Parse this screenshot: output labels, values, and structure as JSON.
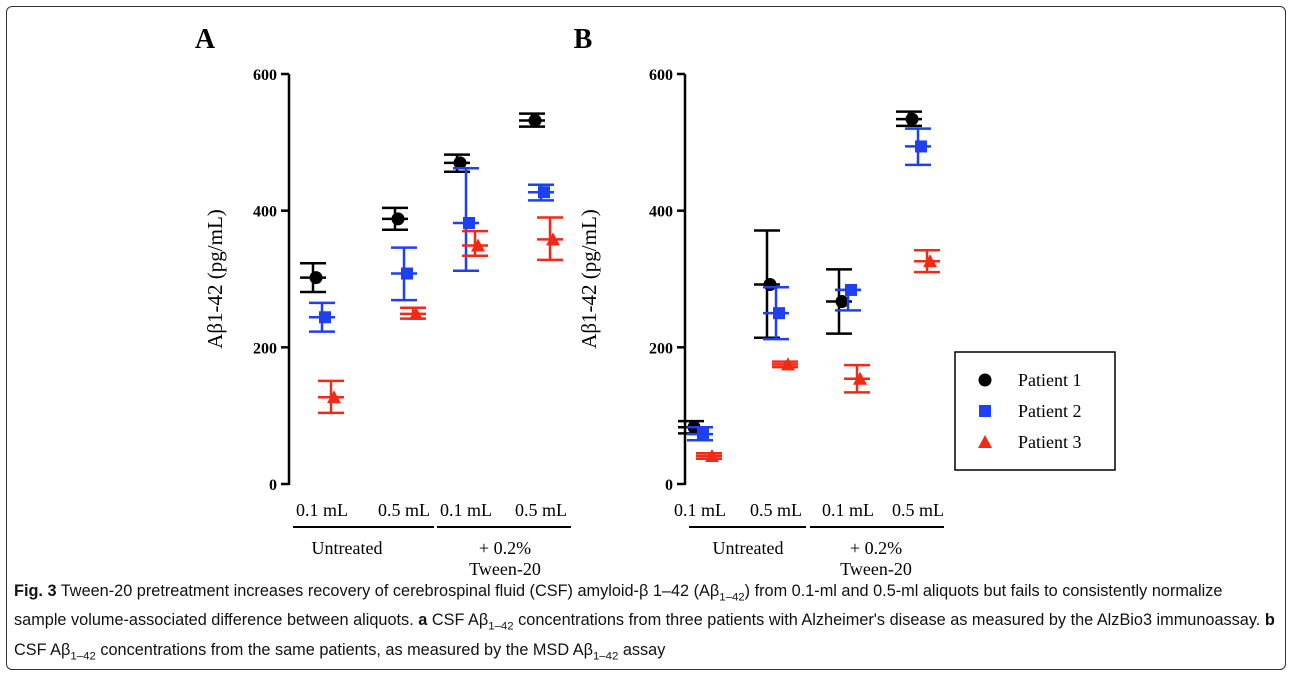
{
  "chart_data": [
    {
      "type": "scatter",
      "panel": "A",
      "ylabel": "Aβ1-42 (pg/mL)",
      "ylim": [
        0,
        600
      ],
      "yticks": [
        "0",
        "200",
        "400",
        "600"
      ],
      "categories": [
        "0.1 mL",
        "0.5 mL",
        "0.1 mL",
        "0.5 mL"
      ],
      "groups": [
        {
          "label": "Untreated",
          "label2": ""
        },
        {
          "label": "+ 0.2%",
          "label2": "Tween-20"
        }
      ],
      "series": [
        {
          "name": "Patient 1",
          "values": [
            302,
            388,
            470,
            532
          ],
          "err_low": [
            281,
            372,
            457,
            523
          ],
          "err_high": [
            323,
            404,
            482,
            542
          ]
        },
        {
          "name": "Patient 2",
          "values": [
            244,
            308,
            382,
            427
          ],
          "err_low": [
            223,
            269,
            312,
            415
          ],
          "err_high": [
            265,
            346,
            462,
            438
          ]
        },
        {
          "name": "Patient 3",
          "values": [
            127,
            249,
            349,
            358
          ],
          "err_low": [
            104,
            242,
            334,
            328
          ],
          "err_high": [
            151,
            258,
            370,
            390
          ]
        }
      ]
    },
    {
      "type": "scatter",
      "panel": "B",
      "ylabel": "Aβ1-42 (pg/mL)",
      "ylim": [
        0,
        600
      ],
      "yticks": [
        "0",
        "200",
        "400",
        "600"
      ],
      "categories": [
        "0.1 mL",
        "0.5 mL",
        "0.1 mL",
        "0.5 mL"
      ],
      "groups": [
        {
          "label": "Untreated",
          "label2": ""
        },
        {
          "label": "+ 0.2%",
          "label2": "Tween-20"
        }
      ],
      "legend": "right",
      "series": [
        {
          "name": "Patient 1",
          "values": [
            83,
            292,
            267,
            534
          ],
          "err_low": [
            74,
            214,
            220,
            524
          ],
          "err_high": [
            92,
            371,
            314,
            545
          ]
        },
        {
          "name": "Patient 2",
          "values": [
            73,
            250,
            284,
            494
          ],
          "err_low": [
            64,
            212,
            254,
            467
          ],
          "err_high": [
            83,
            288,
            284,
            520
          ]
        },
        {
          "name": "Patient 3",
          "values": [
            41,
            175,
            154,
            326
          ],
          "err_low": [
            37,
            171,
            134,
            310
          ],
          "err_high": [
            45,
            179,
            174,
            342
          ]
        }
      ]
    }
  ],
  "colors": {
    "Patient 1": "#000000",
    "Patient 2": "#1f3ff2",
    "Patient 3": "#f02a17"
  },
  "caption": {
    "fig_label": "Fig. 3",
    "part1": " Tween-20 pretreatment increases recovery of cerebrospinal fluid (CSF) amyloid-β 1–42 (Aβ",
    "sub1": "1–42",
    "part2": ") from 0.1-ml and 0.5-ml aliquots but fails to consistently normalize sample volume-associated difference between aliquots. ",
    "a_label": "a",
    "part3": " CSF Aβ",
    "sub2": "1–42",
    "part4": " concentrations from three patients with Alzheimer's disease as measured by the AlzBio3 immunoassay. ",
    "b_label": "b",
    "part5": " CSF Aβ",
    "sub3": "1–42",
    "part6": " concentrations from the same patients, as measured by the MSD Aβ",
    "sub4": "1–42",
    "part7": " assay"
  }
}
